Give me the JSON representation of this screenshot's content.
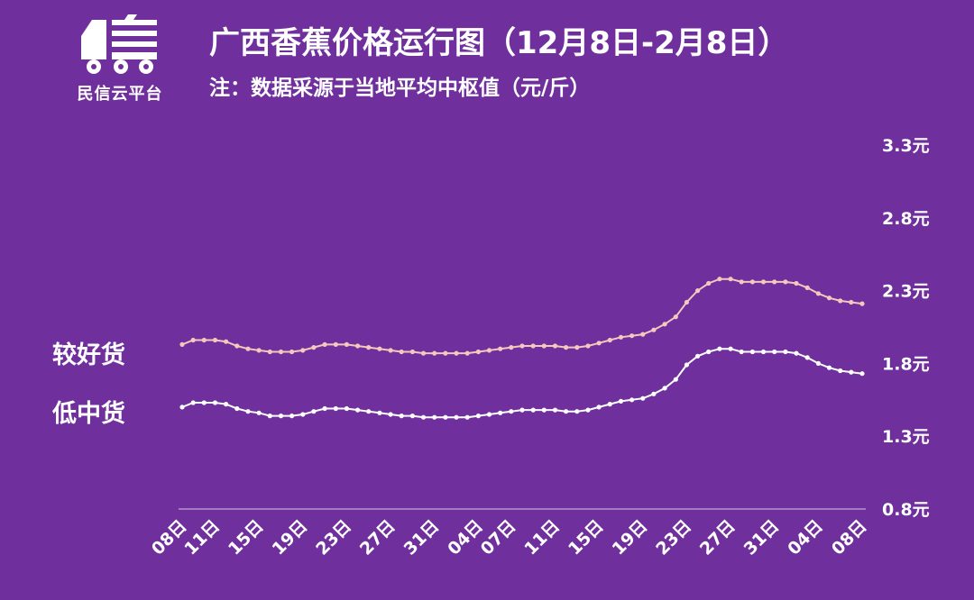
{
  "header": {
    "logo_text": "民信云平台",
    "title": "广西香蕉价格运行图（12月8日-2月8日）",
    "subtitle": "注：数据采源于当地平均中枢值（元/斤）"
  },
  "colors": {
    "background": "#6f2f9c",
    "line_good": "#f6c7bd",
    "line_low": "#ffffff",
    "axis": "#d9c6e6"
  },
  "icons": [
    "truck-logo-icon"
  ],
  "chart_data": {
    "type": "line",
    "title": "广西香蕉价格运行图（12月8日-2月8日）",
    "ylim": [
      0.8,
      3.3
    ],
    "y_ticks": [
      "3.3元",
      "2.8元",
      "2.3元",
      "1.8元",
      "1.3元",
      "0.8元"
    ],
    "y_tick_values": [
      3.3,
      2.8,
      2.3,
      1.8,
      1.3,
      0.8
    ],
    "x_tick_labels": [
      "08日",
      "11日",
      "15日",
      "19日",
      "23日",
      "27日",
      "31日",
      "04日",
      "07日",
      "11日",
      "15日",
      "19日",
      "23日",
      "27日",
      "31日",
      "04日",
      "08日"
    ],
    "x_tick_positions": [
      0,
      3,
      7,
      11,
      15,
      19,
      23,
      27,
      30,
      34,
      38,
      42,
      46,
      50,
      54,
      58,
      62
    ],
    "x_count": 63,
    "grid": false,
    "legend": "left-inline",
    "series": [
      {
        "name": "较好货",
        "values": [
          1.93,
          1.96,
          1.96,
          1.96,
          1.95,
          1.92,
          1.9,
          1.89,
          1.88,
          1.88,
          1.88,
          1.89,
          1.91,
          1.93,
          1.93,
          1.93,
          1.92,
          1.91,
          1.9,
          1.89,
          1.88,
          1.88,
          1.87,
          1.87,
          1.87,
          1.87,
          1.87,
          1.88,
          1.89,
          1.9,
          1.91,
          1.92,
          1.92,
          1.92,
          1.92,
          1.91,
          1.91,
          1.92,
          1.94,
          1.96,
          1.98,
          1.99,
          2.0,
          2.03,
          2.07,
          2.12,
          2.22,
          2.3,
          2.35,
          2.38,
          2.38,
          2.36,
          2.36,
          2.36,
          2.36,
          2.36,
          2.35,
          2.32,
          2.28,
          2.25,
          2.23,
          2.22,
          2.21
        ]
      },
      {
        "name": "低中货",
        "values": [
          1.5,
          1.53,
          1.53,
          1.53,
          1.52,
          1.49,
          1.47,
          1.46,
          1.44,
          1.44,
          1.44,
          1.45,
          1.47,
          1.49,
          1.49,
          1.49,
          1.48,
          1.47,
          1.46,
          1.45,
          1.44,
          1.44,
          1.43,
          1.43,
          1.43,
          1.43,
          1.43,
          1.44,
          1.45,
          1.46,
          1.47,
          1.48,
          1.48,
          1.48,
          1.48,
          1.47,
          1.47,
          1.48,
          1.5,
          1.52,
          1.54,
          1.55,
          1.56,
          1.59,
          1.63,
          1.69,
          1.79,
          1.85,
          1.88,
          1.9,
          1.9,
          1.88,
          1.88,
          1.88,
          1.88,
          1.88,
          1.87,
          1.84,
          1.8,
          1.77,
          1.75,
          1.74,
          1.73
        ]
      }
    ]
  }
}
